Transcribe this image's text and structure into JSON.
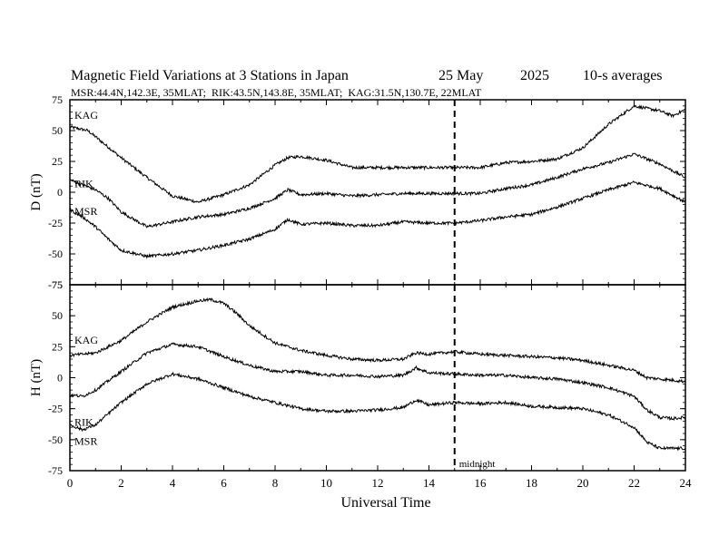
{
  "header": {
    "title": "Magnetic Field Variations at 3 Stations in Japan",
    "date": "25 May",
    "year": "2025",
    "averaging": "10-s averages",
    "stations_line": "MSR:44.4N,142.3E, 35MLAT;  RIK:43.5N,143.8E, 35MLAT;  KAG:31.5N,130.7E, 22MLAT"
  },
  "chart_data": [
    {
      "type": "line",
      "panel": "top",
      "ylabel": "D (nT)",
      "ylim": [
        -75,
        75
      ],
      "yticks": [
        75,
        50,
        25,
        0,
        -25,
        -50,
        -75
      ],
      "xlim": [
        0,
        24
      ],
      "marker": {
        "x": 15,
        "style": "dashed"
      },
      "series": [
        {
          "name": "KAG",
          "x": [
            0,
            0.7,
            1,
            2,
            3,
            4,
            5,
            6,
            7,
            8,
            8.5,
            9,
            10,
            11,
            12,
            13,
            14,
            15,
            16,
            17,
            18,
            19,
            20,
            21,
            22,
            22.5,
            23,
            23.5,
            24
          ],
          "values": [
            53,
            50,
            45,
            28,
            12,
            -3,
            -8,
            -2,
            6,
            22,
            28,
            29,
            26,
            20,
            20,
            20,
            20,
            20,
            20,
            24,
            25,
            27,
            36,
            55,
            70,
            68,
            66,
            62,
            67
          ]
        },
        {
          "name": "RIK",
          "x": [
            0,
            0.5,
            1,
            1.5,
            2,
            3,
            4,
            5,
            6,
            7,
            8,
            8.5,
            9,
            10,
            11,
            12,
            13,
            14,
            15,
            16,
            17,
            18,
            19,
            20,
            21,
            22,
            22.5,
            23,
            24
          ],
          "values": [
            10,
            6,
            2,
            -5,
            -16,
            -28,
            -24,
            -20,
            -18,
            -13,
            -5,
            2,
            -2,
            -1,
            -3,
            -2,
            -1,
            -1,
            -1,
            -1,
            3,
            6,
            12,
            19,
            24,
            31,
            27,
            23,
            12
          ]
        },
        {
          "name": "MSR",
          "x": [
            0,
            0.5,
            1,
            1.5,
            2,
            3,
            4,
            5,
            6,
            7,
            8,
            8.5,
            9,
            10,
            11,
            12,
            13,
            14,
            15,
            16,
            17,
            18,
            19,
            20,
            21,
            22,
            23,
            24
          ],
          "values": [
            -14,
            -20,
            -28,
            -38,
            -47,
            -52,
            -50,
            -47,
            -43,
            -38,
            -30,
            -22,
            -26,
            -25,
            -27,
            -27,
            -24,
            -25,
            -25,
            -23,
            -20,
            -18,
            -12,
            -5,
            2,
            8,
            3,
            -8
          ]
        }
      ]
    },
    {
      "type": "line",
      "panel": "bottom",
      "ylabel": "H (nT)",
      "xlabel": "Universal Time",
      "ylim": [
        -75,
        75
      ],
      "yticks": [
        75,
        50,
        25,
        0,
        -25,
        -50,
        -75
      ],
      "xlim": [
        0,
        24
      ],
      "xticks": [
        0,
        2,
        4,
        6,
        8,
        10,
        12,
        14,
        16,
        18,
        20,
        22,
        24
      ],
      "marker": {
        "x": 15,
        "style": "dashed",
        "label": "midnight"
      },
      "series": [
        {
          "name": "KAG",
          "x": [
            0,
            1,
            2,
            3,
            4,
            5,
            5.5,
            6,
            6.5,
            7,
            8,
            9,
            10,
            11,
            12,
            13,
            13.5,
            14,
            15,
            16,
            17,
            18,
            19,
            20,
            21,
            22,
            22.5,
            23,
            24
          ],
          "values": [
            18,
            20,
            30,
            45,
            57,
            62,
            63,
            60,
            52,
            42,
            28,
            22,
            18,
            15,
            14,
            15,
            20,
            19,
            21,
            19,
            18,
            17,
            16,
            14,
            10,
            6,
            0,
            -1,
            -3
          ]
        },
        {
          "name": "RIK",
          "x": [
            0,
            0.5,
            1,
            2,
            3,
            4,
            5,
            6,
            7,
            8,
            9,
            10,
            11,
            12,
            13,
            13.5,
            14,
            15,
            16,
            17,
            18,
            19,
            20,
            21,
            22,
            22.5,
            23,
            23.5,
            24
          ],
          "values": [
            -14,
            -15,
            -10,
            5,
            20,
            27,
            25,
            17,
            10,
            5,
            5,
            2,
            2,
            1,
            2,
            8,
            4,
            3,
            2,
            2,
            0,
            -1,
            -4,
            -8,
            -15,
            -26,
            -32,
            -33,
            -32
          ]
        },
        {
          "name": "MSR",
          "x": [
            0,
            0.5,
            1,
            2,
            3,
            4,
            5,
            6,
            7,
            8,
            9,
            10,
            11,
            12,
            13,
            13.5,
            14,
            15,
            16,
            17,
            18,
            19,
            20,
            21,
            22,
            22.5,
            23,
            23.5,
            24
          ],
          "values": [
            -38,
            -42,
            -38,
            -20,
            -5,
            3,
            -1,
            -8,
            -15,
            -20,
            -25,
            -27,
            -27,
            -26,
            -24,
            -18,
            -22,
            -20,
            -21,
            -20,
            -23,
            -24,
            -25,
            -30,
            -40,
            -52,
            -57,
            -57,
            -57
          ]
        }
      ]
    }
  ]
}
